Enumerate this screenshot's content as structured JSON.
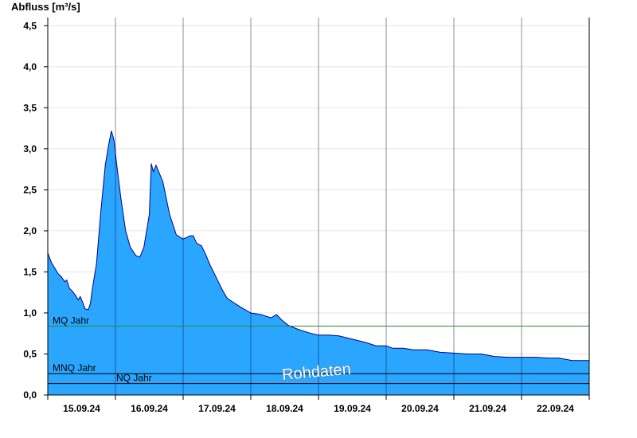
{
  "chart_data": {
    "type": "area",
    "ylabel": "Abfluss [m³/s]",
    "xlabel": "",
    "ylim": [
      0,
      4.6
    ],
    "y_ticks": [
      "0,0",
      "0,5",
      "1,0",
      "1,5",
      "2,0",
      "2,5",
      "3,0",
      "3,5",
      "4,0",
      "4,5"
    ],
    "x_ticks": [
      "15.09.24",
      "16.09.24",
      "17.09.24",
      "18.09.24",
      "19.09.24",
      "20.09.24",
      "21.09.24",
      "22.09.24"
    ],
    "x_unit": "days",
    "x_range": [
      14.0,
      22.0
    ],
    "grid": true,
    "fill_color": "#2aa6ff",
    "line_color": "#00008b",
    "series": [
      {
        "values": [
          [
            14.0,
            1.73
          ],
          [
            14.05,
            1.62
          ],
          [
            14.1,
            1.55
          ],
          [
            14.15,
            1.48
          ],
          [
            14.2,
            1.44
          ],
          [
            14.25,
            1.38
          ],
          [
            14.28,
            1.4
          ],
          [
            14.32,
            1.3
          ],
          [
            14.37,
            1.26
          ],
          [
            14.42,
            1.2
          ],
          [
            14.45,
            1.16
          ],
          [
            14.48,
            1.2
          ],
          [
            14.52,
            1.12
          ],
          [
            14.55,
            1.05
          ],
          [
            14.6,
            1.04
          ],
          [
            14.63,
            1.12
          ],
          [
            14.66,
            1.3
          ],
          [
            14.72,
            1.6
          ],
          [
            14.78,
            2.2
          ],
          [
            14.85,
            2.8
          ],
          [
            14.9,
            3.05
          ],
          [
            14.94,
            3.22
          ],
          [
            14.98,
            3.1
          ],
          [
            15.02,
            2.8
          ],
          [
            15.08,
            2.4
          ],
          [
            15.15,
            2.0
          ],
          [
            15.22,
            1.8
          ],
          [
            15.3,
            1.7
          ],
          [
            15.36,
            1.68
          ],
          [
            15.42,
            1.8
          ],
          [
            15.5,
            2.2
          ],
          [
            15.53,
            2.82
          ],
          [
            15.56,
            2.72
          ],
          [
            15.6,
            2.8
          ],
          [
            15.7,
            2.6
          ],
          [
            15.8,
            2.2
          ],
          [
            15.9,
            1.95
          ],
          [
            16.0,
            1.9
          ],
          [
            16.1,
            1.94
          ],
          [
            16.15,
            1.94
          ],
          [
            16.2,
            1.85
          ],
          [
            16.27,
            1.82
          ],
          [
            16.33,
            1.72
          ],
          [
            16.4,
            1.58
          ],
          [
            16.46,
            1.48
          ],
          [
            16.52,
            1.38
          ],
          [
            16.58,
            1.28
          ],
          [
            16.65,
            1.18
          ],
          [
            16.72,
            1.14
          ],
          [
            16.85,
            1.07
          ],
          [
            17.0,
            1.0
          ],
          [
            17.15,
            0.98
          ],
          [
            17.3,
            0.94
          ],
          [
            17.38,
            0.98
          ],
          [
            17.45,
            0.92
          ],
          [
            17.55,
            0.85
          ],
          [
            17.7,
            0.8
          ],
          [
            17.85,
            0.76
          ],
          [
            18.0,
            0.73
          ],
          [
            18.15,
            0.73
          ],
          [
            18.3,
            0.72
          ],
          [
            18.5,
            0.68
          ],
          [
            18.7,
            0.64
          ],
          [
            18.85,
            0.6
          ],
          [
            19.0,
            0.6
          ],
          [
            19.1,
            0.57
          ],
          [
            19.25,
            0.57
          ],
          [
            19.4,
            0.55
          ],
          [
            19.6,
            0.55
          ],
          [
            19.8,
            0.52
          ],
          [
            20.0,
            0.51
          ],
          [
            20.2,
            0.5
          ],
          [
            20.4,
            0.5
          ],
          [
            20.6,
            0.47
          ],
          [
            20.8,
            0.46
          ],
          [
            21.0,
            0.46
          ],
          [
            21.2,
            0.46
          ],
          [
            21.4,
            0.45
          ],
          [
            21.55,
            0.45
          ],
          [
            21.75,
            0.42
          ],
          [
            22.0,
            0.42
          ]
        ]
      }
    ],
    "reference_lines": [
      {
        "label": "MQ Jahr",
        "value": 0.84,
        "color": "#2e8b2e"
      },
      {
        "label": "MNQ Jahr",
        "value": 0.26,
        "color": "#000000"
      },
      {
        "label": "NQ Jahr",
        "value": 0.14,
        "color": "#000000"
      }
    ],
    "annotations": [
      {
        "text": "Rohdaten"
      }
    ]
  }
}
